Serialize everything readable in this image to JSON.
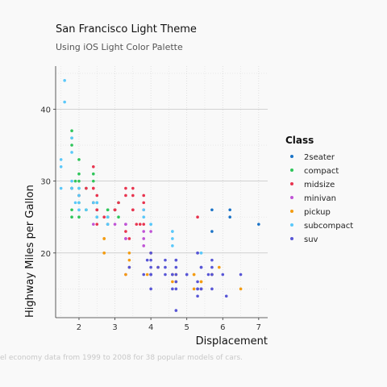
{
  "chart_data": {
    "type": "scatter",
    "title": "San Francisco Light Theme",
    "subtitle": "Using iOS Light Color Palette",
    "caption": "el economy data from 1999 to 2008 for 38 popular models of cars.",
    "xlabel": "Displacement",
    "ylabel": "Highway Miles per Gallon",
    "xlim": [
      1.35,
      7.25
    ],
    "ylim": [
      11,
      46
    ],
    "x_ticks": [
      2,
      3,
      4,
      5,
      6,
      7
    ],
    "y_ticks": [
      20,
      30,
      40
    ],
    "grid": true,
    "legend": {
      "title": "Class",
      "position": "right"
    },
    "series": [
      {
        "name": "2seater",
        "color": "#1a73c7",
        "points": [
          [
            5.7,
            26
          ],
          [
            5.7,
            23
          ],
          [
            6.2,
            26
          ],
          [
            6.2,
            25
          ],
          [
            7.0,
            24
          ]
        ]
      },
      {
        "name": "compact",
        "color": "#2fc55a",
        "points": [
          [
            1.8,
            29
          ],
          [
            1.8,
            29
          ],
          [
            2.0,
            31
          ],
          [
            2.0,
            30
          ],
          [
            2.8,
            26
          ],
          [
            2.8,
            26
          ],
          [
            3.1,
            27
          ],
          [
            1.8,
            26
          ],
          [
            1.8,
            25
          ],
          [
            2.0,
            28
          ],
          [
            2.0,
            27
          ],
          [
            2.8,
            25
          ],
          [
            2.8,
            25
          ],
          [
            3.1,
            25
          ],
          [
            2.4,
            27
          ],
          [
            2.4,
            30
          ],
          [
            2.2,
            26
          ],
          [
            2.2,
            26
          ],
          [
            2.2,
            29
          ],
          [
            2.4,
            27
          ],
          [
            2.4,
            31
          ],
          [
            3.0,
            26
          ],
          [
            3.0,
            26
          ],
          [
            2.5,
            26
          ],
          [
            2.5,
            25
          ],
          [
            1.8,
            29
          ],
          [
            1.8,
            36
          ],
          [
            1.8,
            37
          ],
          [
            1.8,
            35
          ],
          [
            2.0,
            33
          ],
          [
            2.0,
            29
          ],
          [
            2.0,
            25
          ],
          [
            2.5,
            26
          ],
          [
            2.5,
            27
          ],
          [
            1.9,
            30
          ],
          [
            2.8,
            24
          ]
        ]
      },
      {
        "name": "midsize",
        "color": "#e8344f",
        "points": [
          [
            2.4,
            32
          ],
          [
            2.4,
            27
          ],
          [
            2.5,
            26
          ],
          [
            2.5,
            28
          ],
          [
            3.3,
            28
          ],
          [
            3.3,
            29
          ],
          [
            3.8,
            26
          ],
          [
            3.8,
            27
          ],
          [
            3.8,
            24
          ],
          [
            5.3,
            25
          ],
          [
            3.0,
            26
          ],
          [
            3.0,
            26
          ],
          [
            3.5,
            28
          ],
          [
            3.5,
            26
          ],
          [
            2.4,
            29
          ],
          [
            2.4,
            29
          ],
          [
            3.1,
            27
          ],
          [
            3.5,
            29
          ],
          [
            3.6,
            24
          ],
          [
            1.8,
            29
          ],
          [
            2.0,
            28
          ],
          [
            2.8,
            24
          ],
          [
            3.0,
            26
          ],
          [
            2.7,
            25
          ],
          [
            3.8,
            28
          ],
          [
            2.2,
            29
          ],
          [
            2.5,
            24
          ],
          [
            3.3,
            23
          ],
          [
            2.5,
            26
          ],
          [
            3.4,
            22
          ],
          [
            3.5,
            26
          ],
          [
            3.7,
            24
          ]
        ]
      },
      {
        "name": "minivan",
        "color": "#c054d6",
        "points": [
          [
            2.4,
            24
          ],
          [
            3.0,
            24
          ],
          [
            3.3,
            22
          ],
          [
            3.3,
            22
          ],
          [
            3.3,
            24
          ],
          [
            3.3,
            24
          ],
          [
            3.3,
            17
          ],
          [
            3.8,
            22
          ],
          [
            3.8,
            21
          ],
          [
            3.8,
            23
          ],
          [
            4.0,
            23
          ]
        ]
      },
      {
        "name": "pickup",
        "color": "#f39c12",
        "points": [
          [
            2.7,
            20
          ],
          [
            2.7,
            20
          ],
          [
            3.4,
            19
          ],
          [
            3.4,
            18
          ],
          [
            4.0,
            20
          ],
          [
            4.7,
            17
          ],
          [
            4.7,
            16
          ],
          [
            4.7,
            16
          ],
          [
            5.2,
            15
          ],
          [
            5.2,
            17
          ],
          [
            5.7,
            17
          ],
          [
            5.9,
            18
          ],
          [
            4.2,
            18
          ],
          [
            4.6,
            17
          ],
          [
            5.4,
            16
          ],
          [
            5.4,
            16
          ],
          [
            3.9,
            17
          ],
          [
            4.7,
            17
          ],
          [
            5.2,
            17
          ],
          [
            5.7,
            17
          ],
          [
            6.5,
            15
          ],
          [
            3.3,
            17
          ],
          [
            4.0,
            17
          ],
          [
            4.6,
            16
          ],
          [
            5.4,
            15
          ],
          [
            2.7,
            22
          ],
          [
            3.4,
            20
          ],
          [
            4.0,
            20
          ],
          [
            2.7,
            22
          ],
          [
            4.0,
            20
          ]
        ]
      },
      {
        "name": "subcompact",
        "color": "#5ac8fa",
        "points": [
          [
            1.6,
            44
          ],
          [
            1.6,
            41
          ],
          [
            1.8,
            36
          ],
          [
            1.8,
            34
          ],
          [
            1.8,
            29
          ],
          [
            1.5,
            33
          ],
          [
            1.5,
            32
          ],
          [
            1.5,
            29
          ],
          [
            2.0,
            29
          ],
          [
            2.0,
            27
          ],
          [
            2.8,
            24
          ],
          [
            2.8,
            24
          ],
          [
            4.6,
            23
          ],
          [
            4.6,
            22
          ],
          [
            4.6,
            21
          ],
          [
            5.4,
            20
          ],
          [
            3.8,
            26
          ],
          [
            4.0,
            24
          ],
          [
            4.0,
            24
          ],
          [
            2.5,
            27
          ],
          [
            2.5,
            27
          ],
          [
            2.2,
            26
          ],
          [
            2.4,
            27
          ],
          [
            1.8,
            29
          ],
          [
            1.8,
            30
          ],
          [
            2.0,
            26
          ],
          [
            2.0,
            28
          ],
          [
            2.5,
            25
          ],
          [
            2.8,
            25
          ],
          [
            1.9,
            27
          ],
          [
            2.0,
            26
          ],
          [
            3.8,
            25
          ],
          [
            4.6,
            23
          ],
          [
            5.4,
            20
          ]
        ]
      },
      {
        "name": "suv",
        "color": "#5856d6",
        "points": [
          [
            5.3,
            20
          ],
          [
            5.3,
            15
          ],
          [
            5.3,
            20
          ],
          [
            5.7,
            17
          ],
          [
            6.0,
            17
          ],
          [
            5.7,
            17
          ],
          [
            5.7,
            19
          ],
          [
            6.5,
            17
          ],
          [
            4.7,
            17
          ],
          [
            4.7,
            19
          ],
          [
            4.7,
            16
          ],
          [
            5.7,
            18
          ],
          [
            6.1,
            14
          ],
          [
            4.0,
            19
          ],
          [
            4.0,
            17
          ],
          [
            4.2,
            18
          ],
          [
            4.6,
            17
          ],
          [
            5.0,
            17
          ],
          [
            5.4,
            15
          ],
          [
            5.4,
            18
          ],
          [
            4.0,
            18
          ],
          [
            4.7,
            15
          ],
          [
            4.7,
            12
          ],
          [
            5.7,
            15
          ],
          [
            4.0,
            20
          ],
          [
            4.0,
            20
          ],
          [
            4.7,
            19
          ],
          [
            4.7,
            18
          ],
          [
            4.4,
            18
          ],
          [
            3.4,
            18
          ],
          [
            5.3,
            14
          ],
          [
            5.3,
            15
          ],
          [
            5.3,
            16
          ],
          [
            5.4,
            15
          ],
          [
            3.8,
            17
          ],
          [
            3.9,
            19
          ],
          [
            4.0,
            17
          ],
          [
            4.6,
            15
          ],
          [
            4.6,
            17
          ],
          [
            5.0,
            17
          ],
          [
            4.0,
            15
          ],
          [
            4.0,
            17
          ],
          [
            4.4,
            19
          ],
          [
            4.4,
            17
          ],
          [
            5.4,
            18
          ],
          [
            5.6,
            17
          ]
        ]
      }
    ]
  }
}
